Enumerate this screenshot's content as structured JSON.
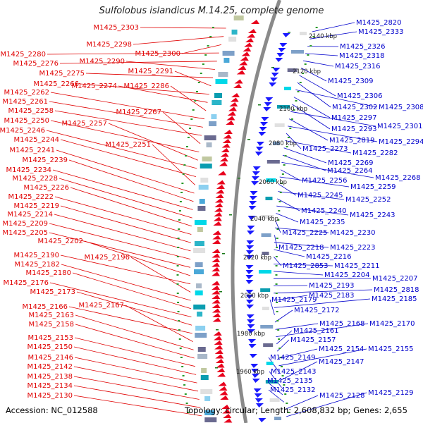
{
  "title": "Sulfolobus islandicus M.14.25, complete genome",
  "footer": {
    "accession": "Accession: NC_012588",
    "summary": "Topology: circular; Length: 2,608,832 bp; Genes: 2,655"
  },
  "colors": {
    "forward_label": "#e00000",
    "reverse_label": "#0000cc",
    "forward_gene": "#e8001c",
    "reverse_gene": "#1a1aff",
    "kbp_tick": "#1a7a1a"
  },
  "kbp_ticks": [
    "2140 kbp",
    "2120 kbp",
    "2100 kbp",
    "2080 kbp",
    "2060 kbp",
    "2040 kbp",
    "2020 kbp",
    "2000 kbp",
    "1980 kbp",
    "1960 kbp"
  ],
  "forward_labels": [
    "M1425_2303",
    "M1425_2298",
    "M1425_2300",
    "M1425_2280",
    "M1425_2276",
    "M1425_2290",
    "M1425_2275",
    "M1425_2291",
    "M1425_2266",
    "M1425_2274",
    "M1425_2286",
    "M1425_2262",
    "M1425_2261",
    "M1425_2258",
    "M1425_2267",
    "M1425_2250",
    "M1425_2257",
    "M1425_2246",
    "M1425_2244",
    "M1425_2251",
    "M1425_2241",
    "M1425_2239",
    "M1425_2234",
    "M1425_2228",
    "M1425_2226",
    "M1425_2222",
    "M1425_2219",
    "M1425_2214",
    "M1425_2209",
    "M1425_2205",
    "M1425_2202",
    "M1425_2190",
    "M1425_2196",
    "M1425_2182",
    "M1425_2180",
    "M1425_2176",
    "M1425_2173",
    "M1425_2166",
    "M1425_2167",
    "M1425_2163",
    "M1425_2158",
    "M1425_2153",
    "M1425_2150",
    "M1425_2146",
    "M1425_2142",
    "M1425_2138",
    "M1425_2134",
    "M1425_2130"
  ],
  "reverse_labels": [
    "M1425_2820",
    "M1425_2333",
    "M1425_2326",
    "M1425_2318",
    "M1425_2316",
    "M1425_2309",
    "M1425_2306",
    "M1425_2302",
    "M1425_2308",
    "M1425_2297",
    "M1425_2293",
    "M1425_2301",
    "M1425_2819",
    "M1425_2294",
    "M1425_2273",
    "M1425_2282",
    "M1425_2269",
    "M1425_2264",
    "M1425_2268",
    "M1425_2256",
    "M1425_2259",
    "M1425_2245",
    "M1425_2252",
    "M1425_2240",
    "M1425_2243",
    "M1425_2235",
    "M1425_2225",
    "M1425_2230",
    "M1425_2218",
    "M1425_2223",
    "M1425_2216",
    "M1425_2853",
    "M1425_2211",
    "M1425_2204",
    "M1425_2207",
    "M1425_2193",
    "M1425_2818",
    "M1425_2183",
    "M1425_2185",
    "M1425_2179",
    "M1425_2172",
    "M1425_2168",
    "M1425_2170",
    "M1425_2161",
    "M1425_2157",
    "M1425_2154",
    "M1425_2155",
    "M1425_2149",
    "M1425_2147",
    "M1425_2143",
    "M1425_2135",
    "M1425_2132",
    "M1425_2128",
    "M1425_2129"
  ]
}
